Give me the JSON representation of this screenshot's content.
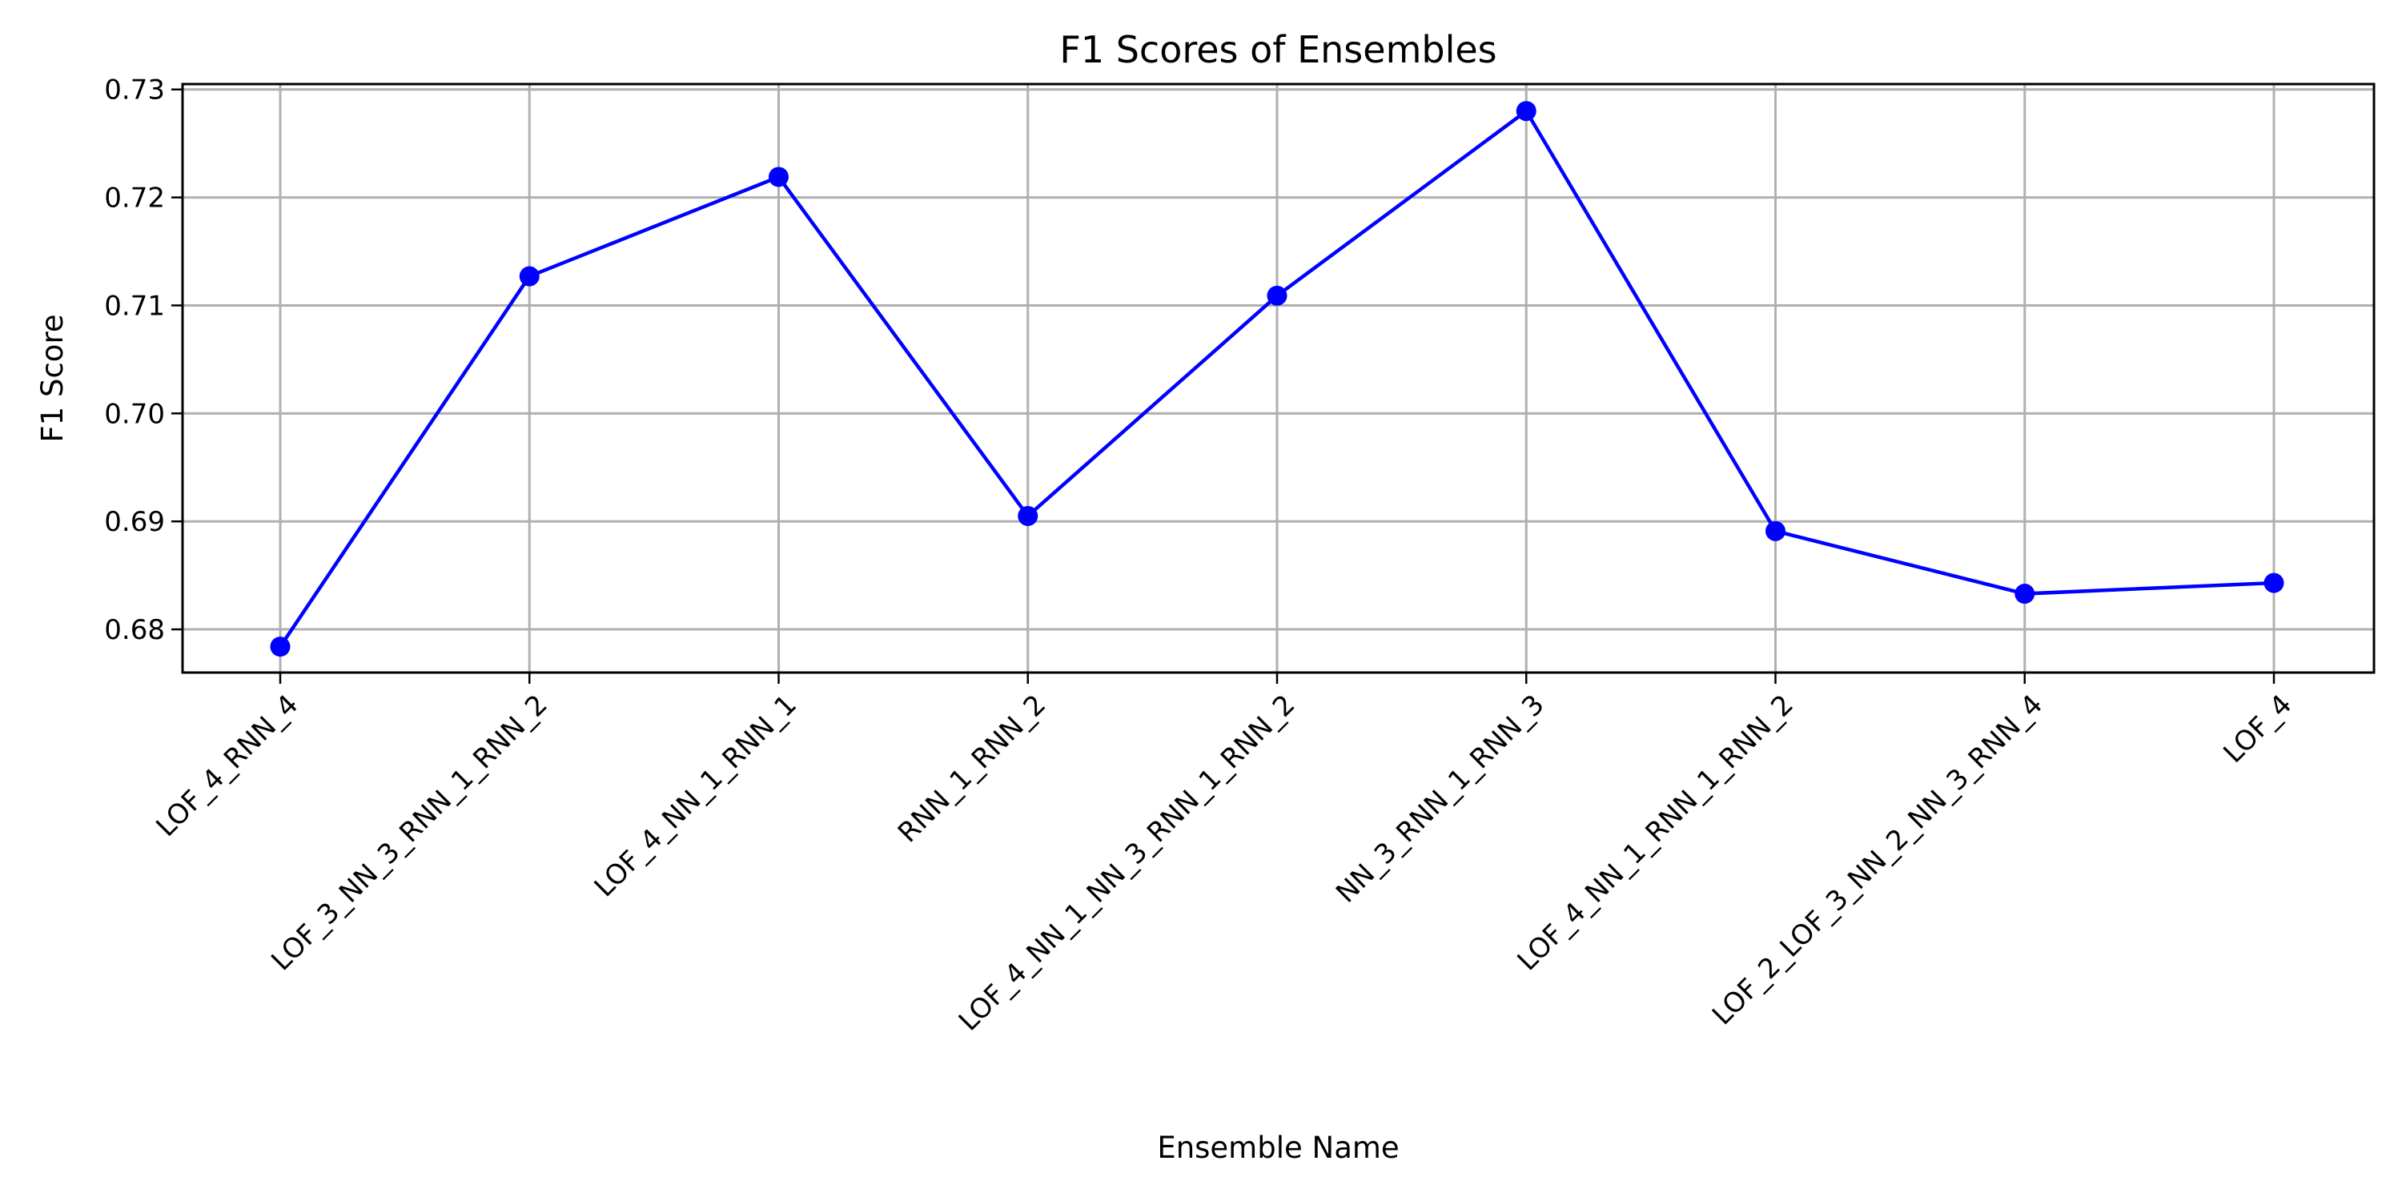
{
  "chart_data": {
    "type": "line",
    "title": "F1 Scores of Ensembles",
    "xlabel": "Ensemble Name",
    "ylabel": "F1 Score",
    "categories": [
      "LOF_4_RNN_4",
      "LOF_3_NN_3_RNN_1_RNN_2",
      "LOF_4_NN_1_RNN_1",
      "RNN_1_RNN_2",
      "LOF_4_NN_1_NN_3_RNN_1_RNN_2",
      "NN_3_RNN_1_RNN_3",
      "LOF_4_NN_1_RNN_1_RNN_2",
      "LOF_2_LOF_3_NN_2_NN_3_RNN_4",
      "LOF_4"
    ],
    "series": [
      {
        "values": [
          0.6784,
          0.7127,
          0.7219,
          0.6905,
          0.7109,
          0.728,
          0.6891,
          0.6833,
          0.6843
        ],
        "color": "#0000ff",
        "marker": "circle"
      }
    ],
    "ylim": [
      0.676,
      0.7305
    ],
    "yticks": [
      "0.68",
      "0.69",
      "0.70",
      "0.71",
      "0.72",
      "0.73"
    ],
    "grid": true
  }
}
